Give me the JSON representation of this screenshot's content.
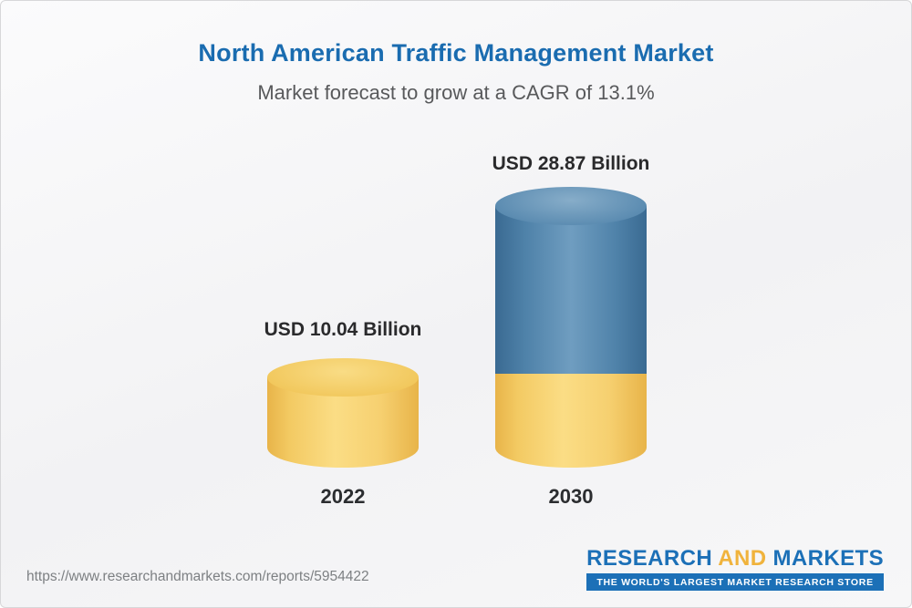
{
  "header": {
    "title": "North American Traffic Management Market",
    "subtitle": "Market forecast to grow at a CAGR of 13.1%"
  },
  "chart_data": {
    "type": "bar",
    "title": "North American Traffic Management Market",
    "subtitle": "Market forecast to grow at a CAGR of 13.1%",
    "cagr_percent": 13.1,
    "unit": "USD Billion",
    "categories": [
      "2022",
      "2030"
    ],
    "values": [
      10.04,
      28.87
    ],
    "bars": [
      {
        "category": "2022",
        "value": 10.04,
        "label": "USD 10.04 Billion",
        "color": "#f3ca63"
      },
      {
        "category": "2030",
        "value": 28.87,
        "label": "USD 28.87 Billion",
        "segment_colors": [
          "#4f82a9",
          "#f3ca63"
        ]
      }
    ],
    "layout": {
      "bar_style": "3d-cylinder",
      "grid": false,
      "legend": "none",
      "title_color": "#1a6cb0",
      "subtitle_color": "#58595b"
    }
  },
  "footer": {
    "url": "https://www.researchandmarkets.com/reports/5954422",
    "logo": {
      "word1": "RESEARCH",
      "word2": "AND",
      "word3": "MARKETS",
      "tagline": "THE WORLD'S LARGEST MARKET RESEARCH STORE",
      "brand_blue": "#1c70b7",
      "brand_gold": "#f0b33c"
    }
  }
}
